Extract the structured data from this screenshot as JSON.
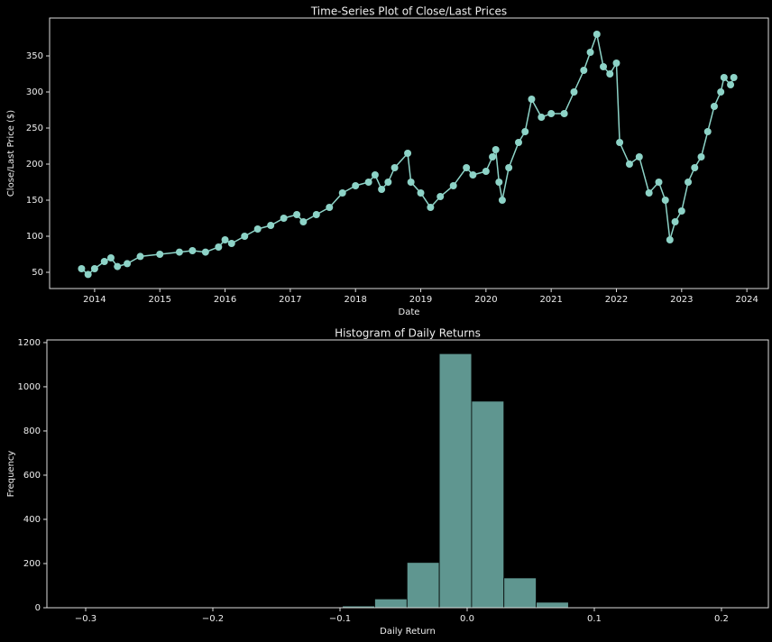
{
  "chart_data": [
    {
      "type": "line",
      "title": "Time-Series Plot of Close/Last Prices",
      "x_label": "Date",
      "y_label": "Close/Last Price ($)",
      "color": "#8dd3c7",
      "x": [
        2013.8,
        2013.9,
        2014.0,
        2014.15,
        2014.25,
        2014.35,
        2014.5,
        2014.7,
        2015.0,
        2015.3,
        2015.5,
        2015.7,
        2015.9,
        2016.0,
        2016.1,
        2016.3,
        2016.5,
        2016.7,
        2016.9,
        2017.1,
        2017.2,
        2017.4,
        2017.6,
        2017.8,
        2018.0,
        2018.2,
        2018.3,
        2018.4,
        2018.5,
        2018.6,
        2018.8,
        2018.85,
        2019.0,
        2019.15,
        2019.3,
        2019.5,
        2019.7,
        2019.8,
        2020.0,
        2020.1,
        2020.15,
        2020.2,
        2020.25,
        2020.35,
        2020.5,
        2020.6,
        2020.7,
        2020.85,
        2021.0,
        2021.2,
        2021.35,
        2021.5,
        2021.6,
        2021.7,
        2021.8,
        2021.9,
        2022.0,
        2022.05,
        2022.2,
        2022.35,
        2022.5,
        2022.65,
        2022.75,
        2022.82,
        2022.9,
        2023.0,
        2023.1,
        2023.2,
        2023.3,
        2023.4,
        2023.5,
        2023.6,
        2023.65,
        2023.75,
        2023.8
      ],
      "values": [
        55,
        47,
        55,
        65,
        70,
        58,
        62,
        72,
        75,
        78,
        80,
        78,
        85,
        95,
        90,
        100,
        110,
        115,
        125,
        130,
        120,
        130,
        140,
        160,
        170,
        175,
        185,
        165,
        175,
        195,
        215,
        175,
        160,
        140,
        155,
        170,
        195,
        185,
        190,
        210,
        220,
        175,
        150,
        195,
        230,
        245,
        290,
        265,
        270,
        270,
        300,
        330,
        355,
        380,
        335,
        325,
        340,
        230,
        200,
        210,
        160,
        175,
        150,
        95,
        120,
        135,
        175,
        195,
        210,
        245,
        280,
        300,
        320,
        310,
        320
      ],
      "xlim": [
        2013.31,
        2024.33
      ],
      "xticks": [
        2014,
        2015,
        2016,
        2017,
        2018,
        2019,
        2020,
        2021,
        2022,
        2023,
        2024
      ],
      "ylim": [
        27.5,
        402.5
      ],
      "yticks": [
        50,
        100,
        150,
        200,
        250,
        300,
        350
      ]
    },
    {
      "type": "histogram",
      "title": "Histogram of Daily Returns",
      "x_label": "Daily Return",
      "y_label": "Frequency",
      "color": "#5f9690",
      "bins": [
        -0.3013,
        -0.2759,
        -0.2505,
        -0.2251,
        -0.1997,
        -0.1743,
        -0.1489,
        -0.1235,
        -0.0981,
        -0.0727,
        -0.0473,
        -0.0219,
        0.0035,
        0.0289,
        0.0543,
        0.0797,
        0.1051,
        0.1305,
        0.1559,
        0.1813,
        0.2067
      ],
      "values": [
        1,
        0,
        0,
        0,
        0,
        0,
        0,
        0,
        8,
        40,
        205,
        1150,
        935,
        135,
        25,
        3,
        1,
        0,
        0,
        1
      ],
      "xlim": [
        -0.3305,
        0.2369
      ],
      "xticks": [
        {
          "value": -0.3,
          "label": "−0.3"
        },
        {
          "value": -0.2,
          "label": "−0.2"
        },
        {
          "value": -0.1,
          "label": "−0.1"
        },
        {
          "value": 0.0,
          "label": "0.0"
        },
        {
          "value": 0.1,
          "label": "0.1"
        },
        {
          "value": 0.2,
          "label": "0.2"
        }
      ],
      "ylim": [
        0,
        1212
      ],
      "yticks": [
        0,
        200,
        400,
        600,
        800,
        1000,
        1200
      ]
    }
  ]
}
